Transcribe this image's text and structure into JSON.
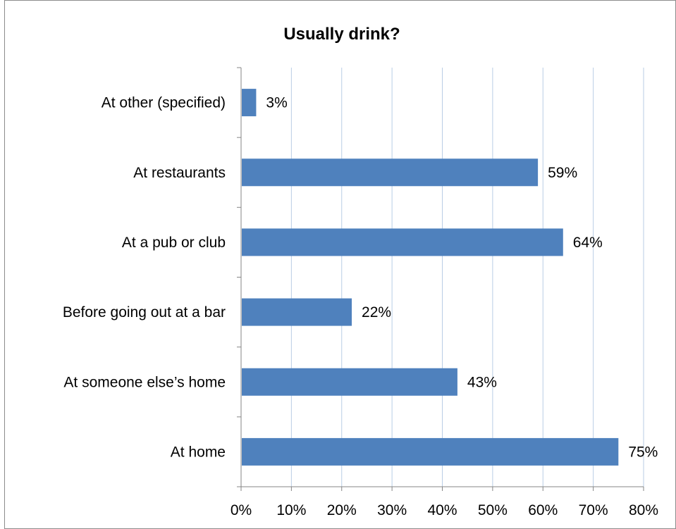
{
  "chart_data": {
    "type": "bar",
    "orientation": "horizontal",
    "title": "Usually drink?",
    "xlabel": "",
    "ylabel": "",
    "categories": [
      "At other (specified)",
      "At restaurants",
      "At a pub or club",
      "Before going out at a bar",
      "At someone else’s home",
      "At home"
    ],
    "values": [
      3,
      59,
      64,
      22,
      43,
      75
    ],
    "data_labels": [
      "3%",
      "59%",
      "64%",
      "22%",
      "43%",
      "75%"
    ],
    "xlim": [
      0,
      80
    ],
    "xticks": [
      0,
      10,
      20,
      30,
      40,
      50,
      60,
      70,
      80
    ],
    "xtick_labels": [
      "0%",
      "10%",
      "20%",
      "30%",
      "40%",
      "50%",
      "60%",
      "70%",
      "80%"
    ],
    "grid": "vertical",
    "legend": "none",
    "bar_color": "#4f81bd",
    "gridline_color": "#b9cde5",
    "axis_color": "#868686"
  }
}
